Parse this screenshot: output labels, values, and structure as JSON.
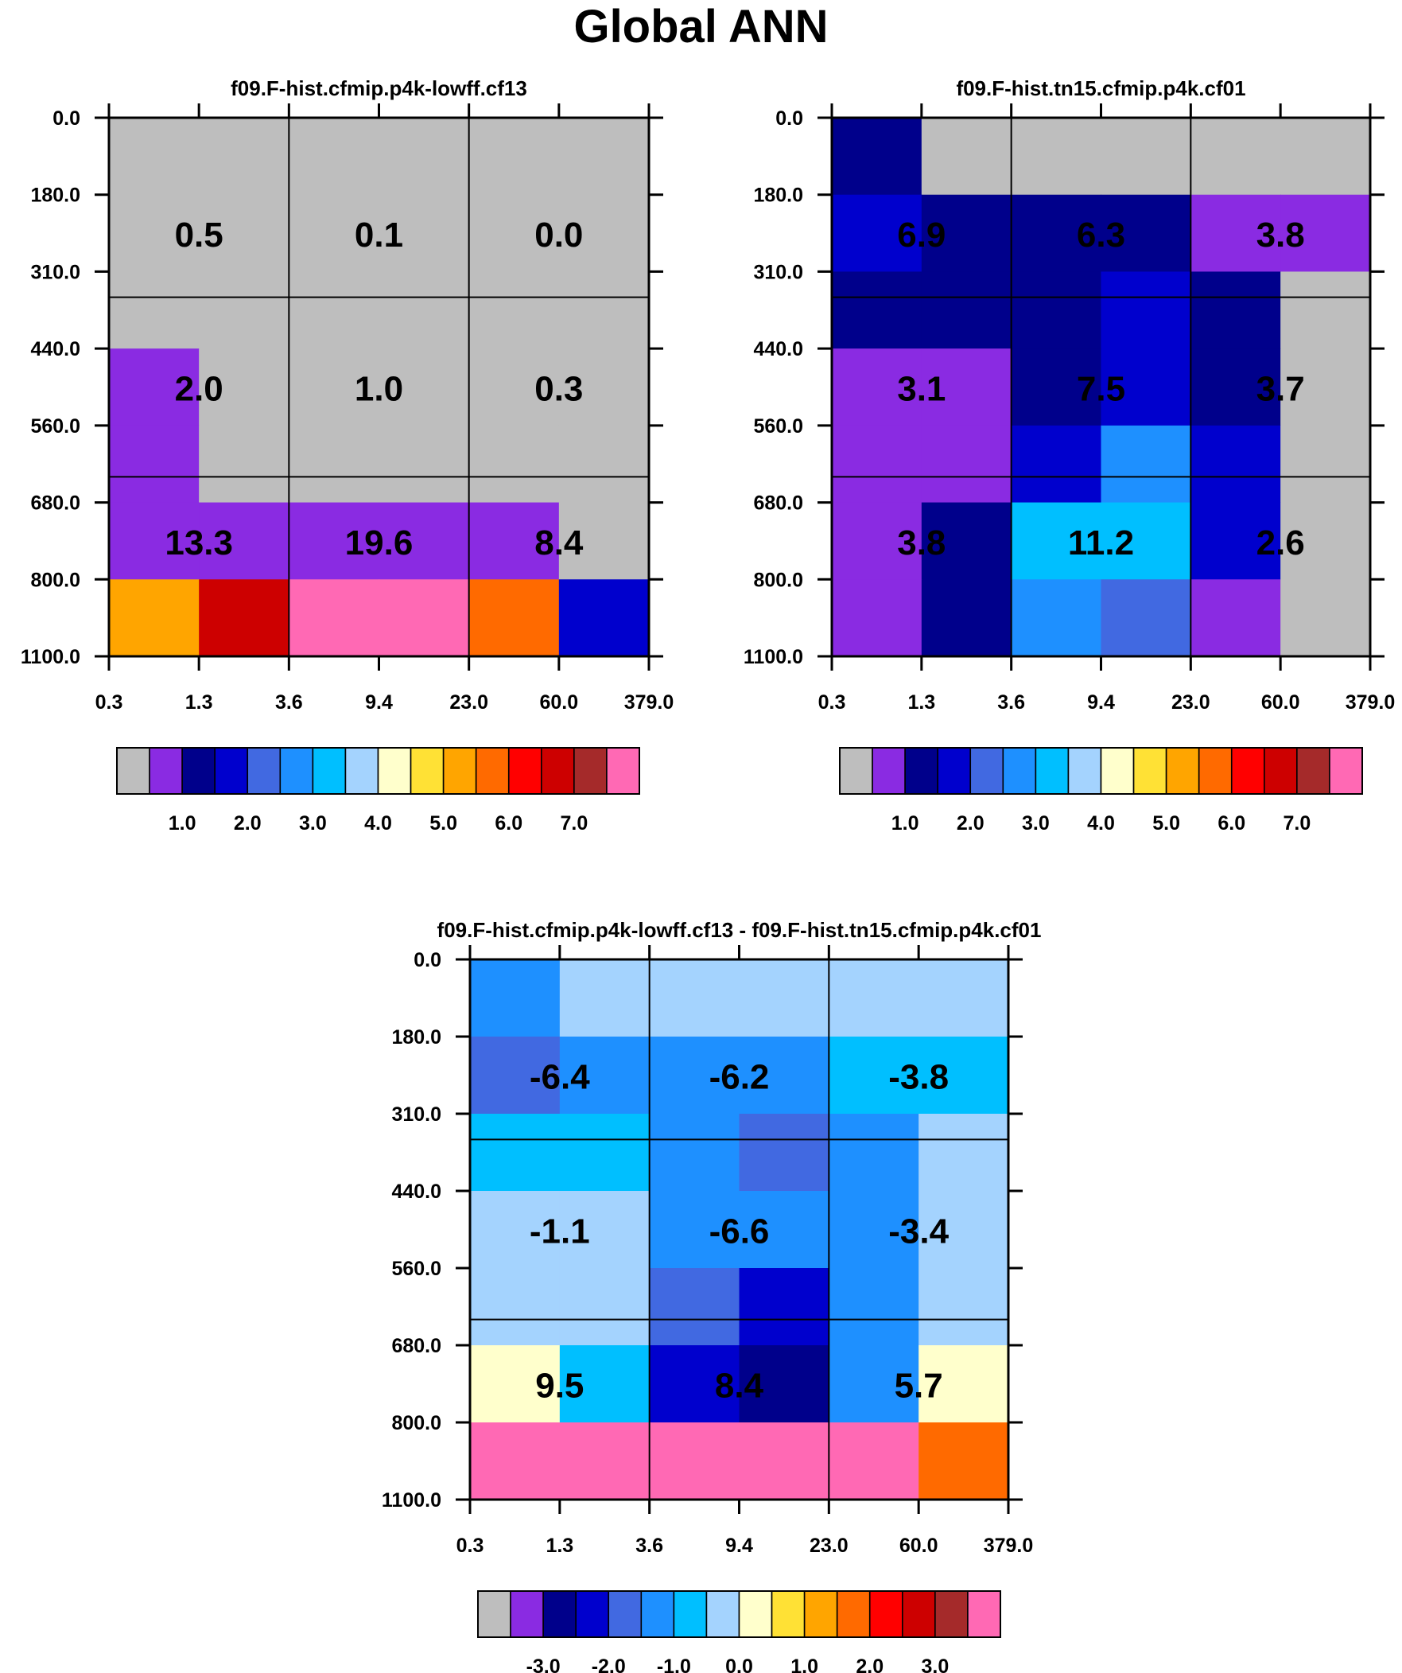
{
  "title": "Global ANN",
  "colors": {
    "palette": [
      "#bebebe",
      "#8a2be2",
      "#00008b",
      "#0000cd",
      "#4169e1",
      "#1e90ff",
      "#00bfff",
      "#a4d3fe",
      "#ffffcc",
      "#ffe135",
      "#ffa500",
      "#ff6a00",
      "#ff0000",
      "#cd0000",
      "#a52a2a",
      "#ff69b4"
    ]
  },
  "chart_data": [
    {
      "type": "heatmap",
      "title": "f09.F-hist.cfmip.p4k-lowff.cf13",
      "x_ticks": [
        "0.3",
        "1.3",
        "3.6",
        "9.4",
        "23.0",
        "60.0",
        "379.0"
      ],
      "y_ticks": [
        "0.0",
        "180.0",
        "310.0",
        "440.0",
        "560.0",
        "680.0",
        "800.0",
        "1100.0"
      ],
      "cell_color_index": [
        [
          0,
          0,
          0,
          0,
          0,
          0
        ],
        [
          0,
          0,
          0,
          0,
          0,
          0
        ],
        [
          0,
          0,
          0,
          0,
          0,
          0
        ],
        [
          1,
          0,
          0,
          0,
          0,
          0
        ],
        [
          1,
          0,
          0,
          0,
          0,
          0
        ],
        [
          1,
          1,
          1,
          1,
          1,
          0
        ],
        [
          10,
          13,
          15,
          15,
          11,
          3
        ]
      ],
      "block_values": [
        [
          "0.5",
          "0.1",
          "0.0"
        ],
        [
          "2.0",
          "1.0",
          "0.3"
        ],
        [
          "13.3",
          "19.6",
          "8.4"
        ]
      ],
      "colorbar_labels": [
        "1.0",
        "2.0",
        "3.0",
        "4.0",
        "5.0",
        "6.0",
        "7.0"
      ]
    },
    {
      "type": "heatmap",
      "title": "f09.F-hist.tn15.cfmip.p4k.cf01",
      "x_ticks": [
        "0.3",
        "1.3",
        "3.6",
        "9.4",
        "23.0",
        "60.0",
        "379.0"
      ],
      "y_ticks": [
        "0.0",
        "180.0",
        "310.0",
        "440.0",
        "560.0",
        "680.0",
        "800.0",
        "1100.0"
      ],
      "cell_color_index": [
        [
          2,
          0,
          0,
          0,
          0,
          0
        ],
        [
          3,
          2,
          2,
          2,
          1,
          1
        ],
        [
          2,
          2,
          2,
          3,
          2,
          0
        ],
        [
          1,
          1,
          2,
          3,
          2,
          0
        ],
        [
          1,
          1,
          3,
          5,
          3,
          0
        ],
        [
          1,
          2,
          6,
          6,
          3,
          0
        ],
        [
          1,
          2,
          5,
          4,
          1,
          0
        ]
      ],
      "block_values": [
        [
          "6.9",
          "6.3",
          "3.8"
        ],
        [
          "3.1",
          "7.5",
          "3.7"
        ],
        [
          "3.8",
          "11.2",
          "2.6"
        ]
      ],
      "colorbar_labels": [
        "1.0",
        "2.0",
        "3.0",
        "4.0",
        "5.0",
        "6.0",
        "7.0"
      ]
    },
    {
      "type": "heatmap",
      "title": "f09.F-hist.cfmip.p4k-lowff.cf13 - f09.F-hist.tn15.cfmip.p4k.cf01",
      "x_ticks": [
        "0.3",
        "1.3",
        "3.6",
        "9.4",
        "23.0",
        "60.0",
        "379.0"
      ],
      "y_ticks": [
        "0.0",
        "180.0",
        "310.0",
        "440.0",
        "560.0",
        "680.0",
        "800.0",
        "1100.0"
      ],
      "cell_color_index": [
        [
          5,
          7,
          7,
          7,
          7,
          7
        ],
        [
          4,
          5,
          5,
          5,
          6,
          6
        ],
        [
          6,
          6,
          5,
          4,
          5,
          7
        ],
        [
          7,
          7,
          5,
          5,
          5,
          7
        ],
        [
          7,
          7,
          4,
          3,
          5,
          7
        ],
        [
          8,
          6,
          3,
          2,
          5,
          8
        ],
        [
          15,
          15,
          15,
          15,
          15,
          11
        ]
      ],
      "block_values": [
        [
          "-6.4",
          "-6.2",
          "-3.8"
        ],
        [
          "-1.1",
          "-6.6",
          "-3.4"
        ],
        [
          "9.5",
          "8.4",
          "5.7"
        ]
      ],
      "colorbar_labels": [
        "-3.0",
        "-2.0",
        "-1.0",
        "0.0",
        "1.0",
        "2.0",
        "3.0"
      ]
    }
  ]
}
